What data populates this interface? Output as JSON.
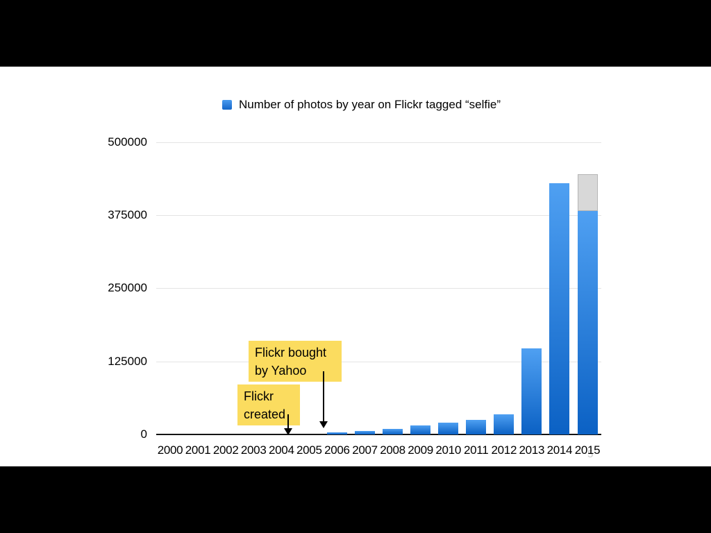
{
  "legend": {
    "label": "Number of photos by year on Flickr tagged “selfie”",
    "swatch_color_top": "#4A9BEF",
    "swatch_color_bottom": "#1566C8"
  },
  "chart_data": {
    "type": "bar",
    "title": "Number of photos by year on Flickr tagged “selfie”",
    "categories": [
      "2000",
      "2001",
      "2002",
      "2003",
      "2004",
      "2005",
      "2006",
      "2007",
      "2008",
      "2009",
      "2010",
      "2011",
      "2012",
      "2013",
      "2014",
      "2015"
    ],
    "values": [
      0,
      0,
      0,
      0,
      0,
      0,
      3500,
      5500,
      9000,
      15000,
      20500,
      25000,
      34500,
      147000,
      430000,
      382000
    ],
    "projected": {
      "category": "2015",
      "total": 445000,
      "note": "gray cap segment on 2015 bar"
    },
    "xlabel": "",
    "ylabel": "",
    "ylim": [
      0,
      500000
    ],
    "yticks": [
      0,
      125000,
      250000,
      375000,
      500000
    ],
    "ytick_labels": [
      "0",
      "125000",
      "250000",
      "375000",
      "500000"
    ],
    "grid": "horizontal",
    "legend_position": "top-center",
    "bar_color_top": "#4FA0F2",
    "bar_color_bottom": "#0B61C4",
    "projected_color": "#D8D8D8"
  },
  "annotations": [
    {
      "lines": [
        "Flickr bought",
        "by Yahoo"
      ],
      "background": "#FBDC5F",
      "points_to": "2005"
    },
    {
      "lines": [
        "Flickr",
        "created"
      ],
      "background": "#FBDC5F",
      "points_to": "2004"
    }
  ],
  "page_number": "5"
}
